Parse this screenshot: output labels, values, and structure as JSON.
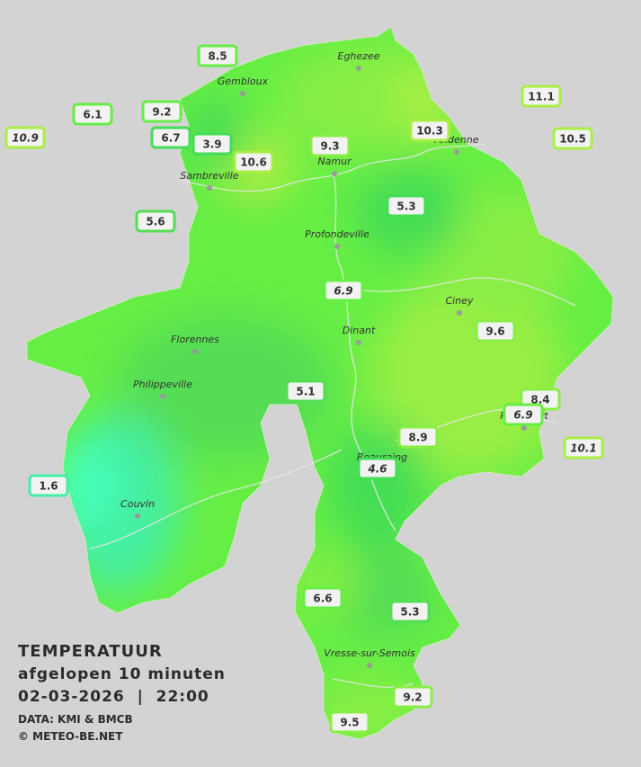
{
  "title": "TEMPERATUUR",
  "subtitle": "afgelopen 10 minuten",
  "datetime": "02-03-2026  |  22:00",
  "source": "DATA: KMI & BMCB",
  "credit": "© METEO-BE.NET",
  "towns": [
    "Eghezee",
    "Gembloux",
    "Andenne",
    "Namur",
    "Sambreville",
    "Profondeville",
    "Ciney",
    "Dinant",
    "Florennes",
    "Philippeville",
    "Rochefort",
    "Beauraing",
    "Couvin",
    "Vresse-sur-Semois"
  ],
  "stations": [
    "8.5",
    "6.1",
    "9.2",
    "10.9",
    "6.7",
    "3.9",
    "10.6",
    "9.3",
    "10.3",
    "11.1",
    "10.5",
    "5.6",
    "5.3",
    "6.9",
    "9.6",
    "5.1",
    "8.4",
    "6.9",
    "8.9",
    "10.1",
    "4.6",
    "1.6",
    "6.6",
    "5.3",
    "9.2",
    "9.5"
  ]
}
